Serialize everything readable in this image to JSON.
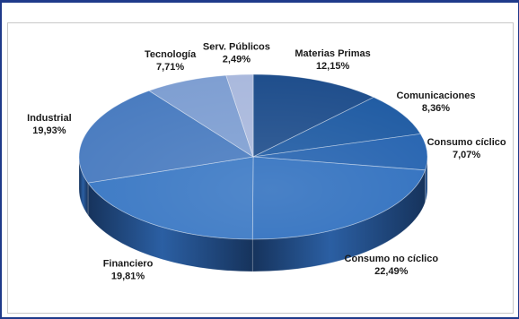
{
  "chart_data": {
    "type": "pie",
    "title": "",
    "start_slice": "Materias Primas",
    "direction": "clockwise",
    "slices": [
      {
        "label": "Materias Primas",
        "value_text": "12,15%",
        "value": 12.15,
        "color": "#1f4e8c"
      },
      {
        "label": "Comunicaciones",
        "value_text": "8,36%",
        "value": 8.36,
        "color": "#1f5ba3"
      },
      {
        "label": "Consumo cíclico",
        "value_text": "7,07%",
        "value": 7.07,
        "color": "#2563b0"
      },
      {
        "label": "Consumo no cíclico",
        "value_text": "22,49%",
        "value": 22.49,
        "color": "#3070bf"
      },
      {
        "label": "Financiero",
        "value_text": "19,81%",
        "value": 19.81,
        "color": "#3a78c4"
      },
      {
        "label": "Industrial",
        "value_text": "19,93%",
        "value": 19.93,
        "color": "#4a7cc0"
      },
      {
        "label": "Tecnología",
        "value_text": "7,71%",
        "value": 7.71,
        "color": "#7f9fd2"
      },
      {
        "label": "Serv. Públicos",
        "value_text": "2,49%",
        "value": 2.49,
        "color": "#aab9dd"
      }
    ]
  }
}
